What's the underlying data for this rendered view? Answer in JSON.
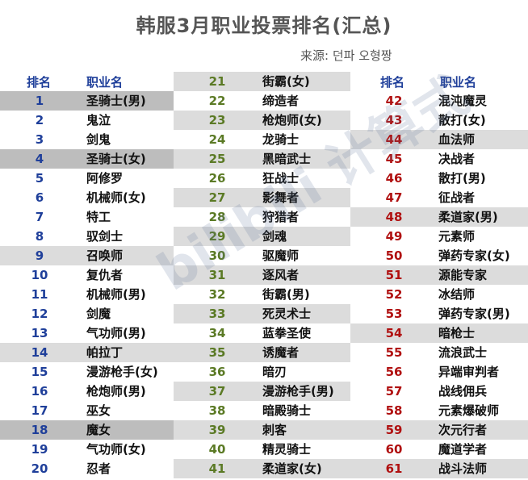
{
  "title": "韩服3月职业投票排名(汇总)",
  "source": "来源: 던파 오형짱",
  "headers": {
    "rank": "排名",
    "class": "职业名"
  },
  "watermark": "bilibili 计算式",
  "col1": [
    {
      "rank": "1",
      "name": "圣骑士(男)"
    },
    {
      "rank": "2",
      "name": "鬼泣"
    },
    {
      "rank": "3",
      "name": "剑鬼"
    },
    {
      "rank": "4",
      "name": "圣骑士(女)"
    },
    {
      "rank": "5",
      "name": "阿修罗"
    },
    {
      "rank": "6",
      "name": "机械师(女)"
    },
    {
      "rank": "7",
      "name": "特工"
    },
    {
      "rank": "8",
      "name": "驭剑士"
    },
    {
      "rank": "9",
      "name": "召唤师"
    },
    {
      "rank": "10",
      "name": "复仇者"
    },
    {
      "rank": "11",
      "name": "机械师(男)"
    },
    {
      "rank": "12",
      "name": "剑魔"
    },
    {
      "rank": "13",
      "name": "气功师(男)"
    },
    {
      "rank": "14",
      "name": "帕拉丁"
    },
    {
      "rank": "15",
      "name": "漫游枪手(女)"
    },
    {
      "rank": "16",
      "name": "枪炮师(男)"
    },
    {
      "rank": "17",
      "name": "巫女"
    },
    {
      "rank": "18",
      "name": "魔女"
    },
    {
      "rank": "19",
      "name": "气功师(女)"
    },
    {
      "rank": "20",
      "name": "忍者"
    }
  ],
  "col2": [
    {
      "rank": "21",
      "name": "街霸(女)"
    },
    {
      "rank": "22",
      "name": "缔造者"
    },
    {
      "rank": "23",
      "name": "枪炮师(女)"
    },
    {
      "rank": "24",
      "name": "龙骑士"
    },
    {
      "rank": "25",
      "name": "黑暗武士"
    },
    {
      "rank": "26",
      "name": "狂战士"
    },
    {
      "rank": "27",
      "name": "影舞者"
    },
    {
      "rank": "28",
      "name": "狩猎者"
    },
    {
      "rank": "29",
      "name": "剑魂"
    },
    {
      "rank": "30",
      "name": "驱魔师"
    },
    {
      "rank": "31",
      "name": "逐风者"
    },
    {
      "rank": "32",
      "name": "街霸(男)"
    },
    {
      "rank": "33",
      "name": "死灵术士"
    },
    {
      "rank": "34",
      "name": "蓝拳圣使"
    },
    {
      "rank": "35",
      "name": "诱魔者"
    },
    {
      "rank": "36",
      "name": "暗刃"
    },
    {
      "rank": "37",
      "name": "漫游枪手(男)"
    },
    {
      "rank": "38",
      "name": "暗殿骑士"
    },
    {
      "rank": "39",
      "name": "刺客"
    },
    {
      "rank": "40",
      "name": "精灵骑士"
    },
    {
      "rank": "41",
      "name": "柔道家(女)"
    }
  ],
  "col3": [
    {
      "rank": "42",
      "name": "混沌魔灵"
    },
    {
      "rank": "43",
      "name": "散打(女)"
    },
    {
      "rank": "44",
      "name": "血法师"
    },
    {
      "rank": "45",
      "name": "决战者"
    },
    {
      "rank": "46",
      "name": "散打(男)"
    },
    {
      "rank": "47",
      "name": "征战者"
    },
    {
      "rank": "48",
      "name": "柔道家(男)"
    },
    {
      "rank": "49",
      "name": "元素师"
    },
    {
      "rank": "50",
      "name": "弹药专家(女)"
    },
    {
      "rank": "51",
      "name": "源能专家"
    },
    {
      "rank": "52",
      "name": "冰结师"
    },
    {
      "rank": "53",
      "name": "弹药专家(男)"
    },
    {
      "rank": "54",
      "name": "暗枪士"
    },
    {
      "rank": "55",
      "name": "流浪武士"
    },
    {
      "rank": "56",
      "name": "异端审判者"
    },
    {
      "rank": "57",
      "name": "战线佣兵"
    },
    {
      "rank": "58",
      "name": "元素爆破师"
    },
    {
      "rank": "59",
      "name": "次元行者"
    },
    {
      "rank": "60",
      "name": "魔道学者"
    },
    {
      "rank": "61",
      "name": "战斗法师"
    }
  ]
}
